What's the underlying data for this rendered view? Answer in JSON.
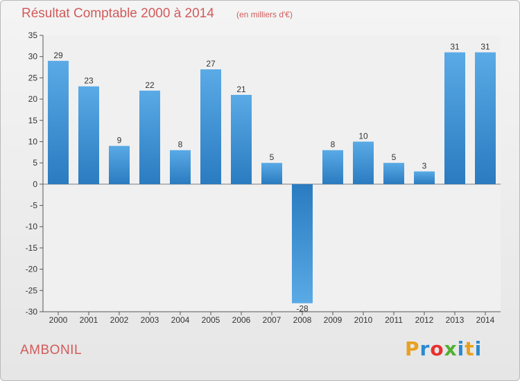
{
  "header": {
    "title": "Résultat Comptable 2000 à 2014",
    "subtitle": "(en milliers d'€)"
  },
  "footer": {
    "commune": "AMBONIL",
    "logo_text": "Proxiti"
  },
  "colors": {
    "title": "#d25a5a",
    "bar_light": "#5aaae6",
    "bar_dark": "#2a7bc0",
    "logo_letters": [
      "#e8a020",
      "#2a8ad0",
      "#e83030",
      "#50b030",
      "#2a8ad0",
      "#e8a020",
      "#2a8ad0"
    ]
  },
  "chart_data": {
    "type": "bar",
    "title": "Résultat Comptable 2000 à 2014",
    "subtitle": "(en milliers d'€)",
    "categories": [
      "2000",
      "2001",
      "2002",
      "2003",
      "2004",
      "2005",
      "2006",
      "2007",
      "2008",
      "2009",
      "2010",
      "2011",
      "2012",
      "2013",
      "2014"
    ],
    "values": [
      29,
      23,
      9,
      22,
      8,
      27,
      21,
      5,
      -28,
      8,
      10,
      5,
      3,
      31,
      31
    ],
    "data_labels": [
      "29",
      "23",
      "9",
      "22",
      "8",
      "27",
      "21",
      "5",
      "-28",
      "8",
      "10",
      "5",
      "3",
      "31",
      "31"
    ],
    "ylim": [
      -30,
      35
    ],
    "yticks": [
      35,
      30,
      25,
      20,
      15,
      10,
      5,
      0,
      -5,
      -10,
      -15,
      -20,
      -25,
      -30
    ],
    "ytick_labels": [
      "35",
      "30",
      "25",
      "20",
      "15",
      "10",
      "5",
      "0",
      "-5",
      "-10",
      "-15",
      "-20",
      "-25",
      "-30"
    ],
    "grid": false,
    "legend": "none"
  }
}
